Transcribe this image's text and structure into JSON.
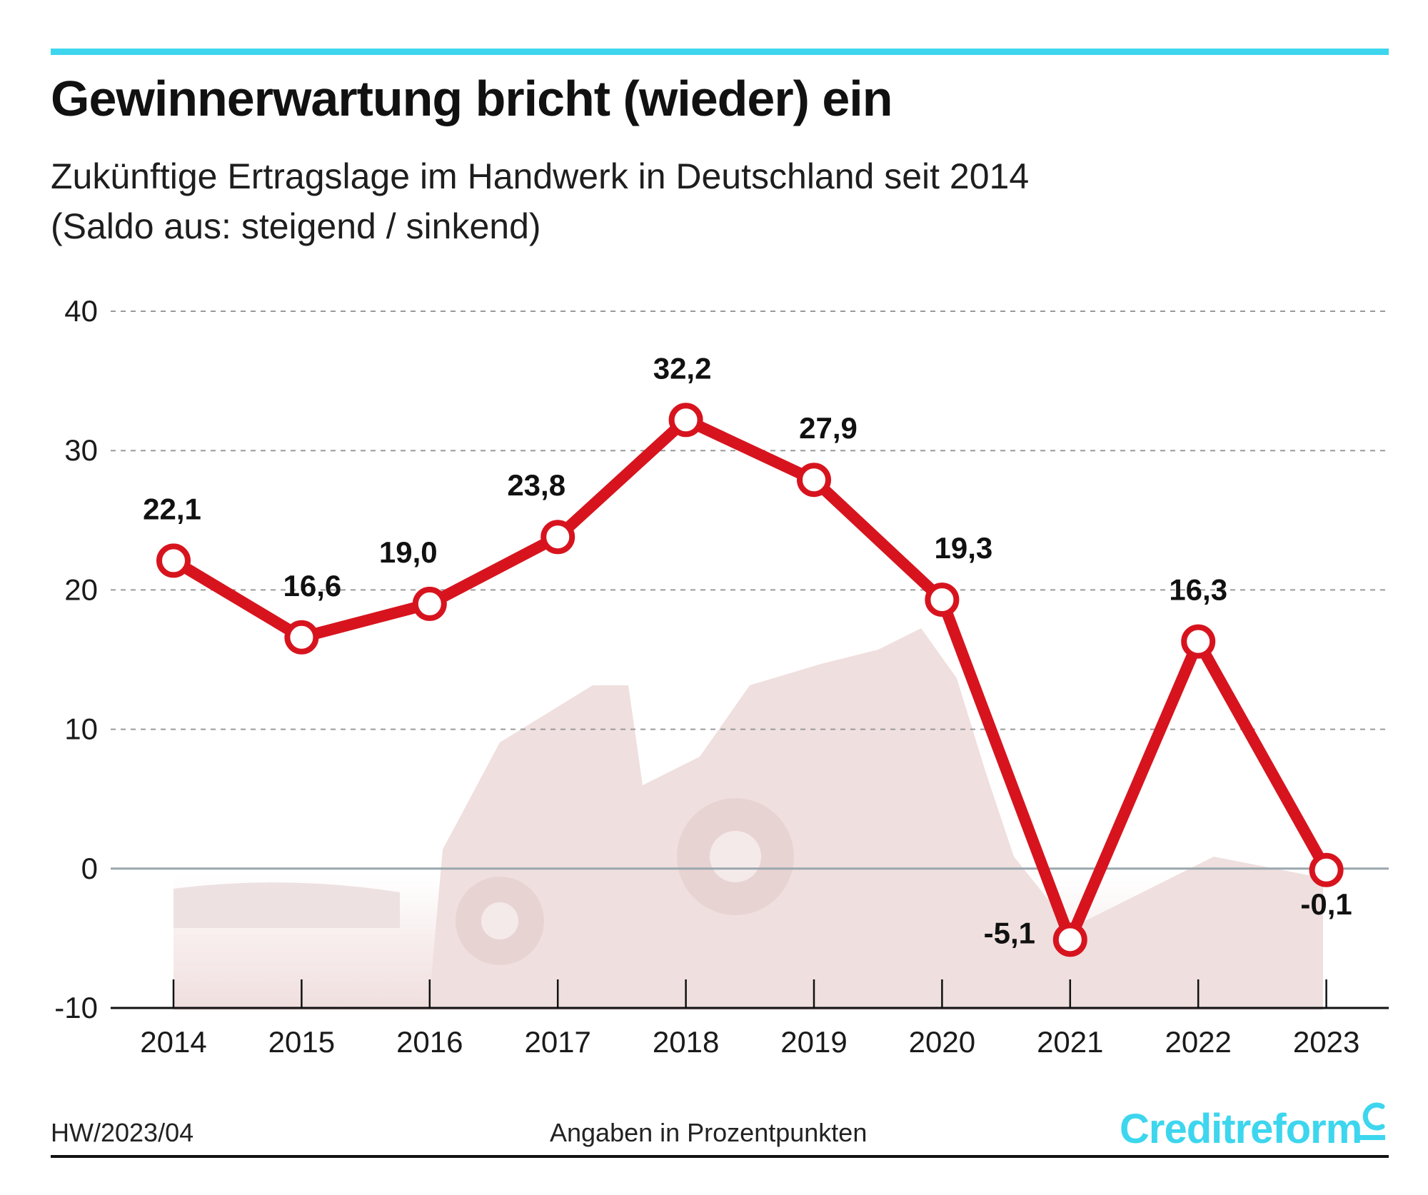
{
  "header": {
    "title": "Gewinnerwartung bricht (wieder) ein",
    "subtitle_line1": "Zukünftige Ertragslage im Handwerk in Deutschland seit 2014",
    "subtitle_line2": "(Saldo aus: steigend / sinkend)"
  },
  "footer": {
    "code": "HW/2023/04",
    "note": "Angaben in Prozentpunkten",
    "brand": "Creditreform"
  },
  "colors": {
    "accent": "#3dd6ee",
    "line": "#d7141e",
    "text": "#1a1a1a"
  },
  "chart_data": {
    "type": "line",
    "title": "Gewinnerwartung bricht (wieder) ein",
    "xlabel": "",
    "ylabel": "",
    "ylim": [
      -10,
      40
    ],
    "yticks": [
      40,
      30,
      20,
      10,
      0,
      -10
    ],
    "ytick_labels": [
      "40",
      "30",
      "20",
      "10",
      "0",
      "-10"
    ],
    "grid": true,
    "categories": [
      "2014",
      "2015",
      "2016",
      "2017",
      "2018",
      "2019",
      "2020",
      "2021",
      "2022",
      "2023"
    ],
    "series": [
      {
        "values": [
          22.1,
          16.6,
          19.0,
          23.8,
          32.2,
          27.9,
          19.3,
          -5.1,
          16.3,
          -0.1
        ],
        "labels": [
          "22,1",
          "16,6",
          "19,0",
          "23,8",
          "32,2",
          "27,9",
          "19,3",
          "-5,1",
          "16,3",
          "-0,1"
        ]
      }
    ]
  }
}
